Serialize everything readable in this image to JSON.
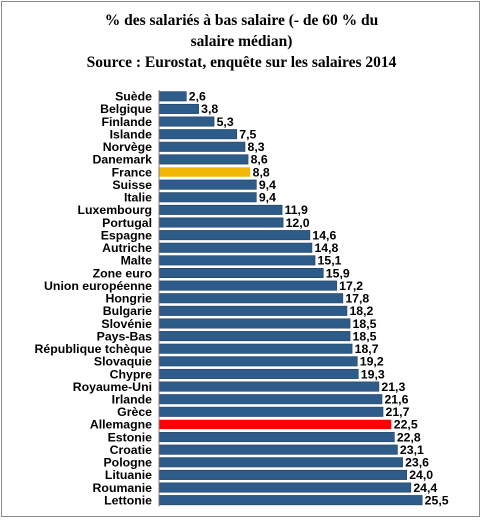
{
  "chart_data": {
    "type": "bar",
    "orientation": "horizontal",
    "title_lines": [
      "% des salariés à bas salaire (- de 60 % du",
      "salaire médian)",
      "Source : Eurostat, enquête sur les salaires 2014"
    ],
    "xlabel": "",
    "ylabel": "",
    "xlim": [
      0,
      26
    ],
    "grid": false,
    "legend": "none",
    "categories": [
      "Suède",
      "Belgique",
      "Finlande",
      "Islande",
      "Norvège",
      "Danemark",
      "France",
      "Suisse",
      "Italie",
      "Luxembourg",
      "Portugal",
      "Espagne",
      "Autriche",
      "Malte",
      "Zone euro",
      "Union européenne",
      "Hongrie",
      "Bulgarie",
      "Slovénie",
      "Pays-Bas",
      "République tchèque",
      "Slovaquie",
      "Chypre",
      "Royaume-Uni",
      "Irlande",
      "Grèce",
      "Allemagne",
      "Estonie",
      "Croatie",
      "Pologne",
      "Lituanie",
      "Roumanie",
      "Lettonie"
    ],
    "values": [
      2.6,
      3.8,
      5.3,
      7.5,
      8.3,
      8.6,
      8.8,
      9.4,
      9.4,
      11.9,
      12.0,
      14.6,
      14.8,
      15.1,
      15.9,
      17.2,
      17.8,
      18.2,
      18.5,
      18.5,
      18.7,
      19.2,
      19.3,
      21.3,
      21.6,
      21.7,
      22.5,
      22.8,
      23.1,
      23.6,
      24.0,
      24.4,
      25.5
    ],
    "value_labels": [
      "2,6",
      "3,8",
      "5,3",
      "7,5",
      "8,3",
      "8,6",
      "8,8",
      "9,4",
      "9,4",
      "11,9",
      "12,0",
      "14,6",
      "14,8",
      "15,1",
      "15,9",
      "17,2",
      "17,8",
      "18,2",
      "18,5",
      "18,5",
      "18,7",
      "19,2",
      "19,3",
      "21,3",
      "21,6",
      "21,7",
      "22,5",
      "22,8",
      "23,1",
      "23,6",
      "24,0",
      "24,4",
      "25,5"
    ],
    "colors": {
      "default": "#2e5c8a",
      "highlight_france": "#f2b705",
      "highlight_allemagne": "#ff0000",
      "default_border": "#1f3f60"
    },
    "highlights": {
      "France": "highlight_france",
      "Allemagne": "highlight_allemagne"
    }
  }
}
